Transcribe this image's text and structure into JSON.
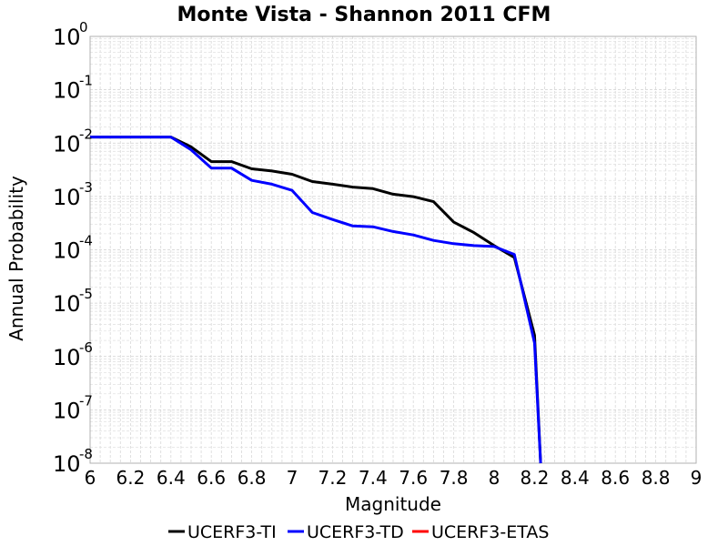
{
  "chart_data": {
    "type": "line",
    "title": "Monte Vista - Shannon 2011 CFM",
    "xlabel": "Magnitude",
    "ylabel": "Annual Probability",
    "xlim": [
      6,
      9
    ],
    "ylim": [
      1e-08,
      1
    ],
    "yscale": "log",
    "grid": true,
    "legend_placement": "bottom",
    "x_ticks": [
      "6",
      "6.2",
      "6.4",
      "6.6",
      "6.8",
      "7",
      "7.2",
      "7.4",
      "7.6",
      "7.8",
      "8",
      "8.2",
      "8.4",
      "8.6",
      "8.8",
      "9"
    ],
    "y_ticks": [
      {
        "base": "10",
        "exp": "0"
      },
      {
        "base": "10",
        "exp": "-1"
      },
      {
        "base": "10",
        "exp": "-2"
      },
      {
        "base": "10",
        "exp": "-3"
      },
      {
        "base": "10",
        "exp": "-4"
      },
      {
        "base": "10",
        "exp": "-5"
      },
      {
        "base": "10",
        "exp": "-6"
      },
      {
        "base": "10",
        "exp": "-7"
      },
      {
        "base": "10",
        "exp": "-8"
      }
    ],
    "series": [
      {
        "name": "UCERF3-TI",
        "color": "#000000",
        "x": [
          6.0,
          6.1,
          6.2,
          6.3,
          6.4,
          6.5,
          6.6,
          6.7,
          6.8,
          6.9,
          7.0,
          7.1,
          7.2,
          7.3,
          7.4,
          7.5,
          7.6,
          7.7,
          7.8,
          7.9,
          8.0,
          8.1,
          8.2,
          8.23
        ],
        "y": [
          0.013,
          0.013,
          0.013,
          0.013,
          0.013,
          0.0085,
          0.0045,
          0.0045,
          0.0033,
          0.003,
          0.0026,
          0.0019,
          0.0017,
          0.0015,
          0.0014,
          0.0011,
          0.00099,
          0.0008,
          0.00033,
          0.00021,
          0.00012,
          7.2e-05,
          2.5e-06,
          1e-08
        ]
      },
      {
        "name": "UCERF3-TD",
        "color": "#0000ff",
        "x": [
          6.0,
          6.1,
          6.2,
          6.3,
          6.4,
          6.5,
          6.6,
          6.7,
          6.8,
          6.9,
          7.0,
          7.1,
          7.2,
          7.3,
          7.4,
          7.5,
          7.6,
          7.7,
          7.8,
          7.9,
          8.0,
          8.1,
          8.2,
          8.23
        ],
        "y": [
          0.013,
          0.013,
          0.013,
          0.013,
          0.013,
          0.0075,
          0.0034,
          0.0034,
          0.002,
          0.0017,
          0.0013,
          0.0005,
          0.00037,
          0.00028,
          0.00027,
          0.00022,
          0.00019,
          0.00015,
          0.00013,
          0.00012,
          0.000115,
          8.2e-05,
          1.8e-06,
          1e-08
        ]
      },
      {
        "name": "UCERF3-ETAS",
        "color": "#ff0000",
        "x": [],
        "y": []
      }
    ]
  }
}
